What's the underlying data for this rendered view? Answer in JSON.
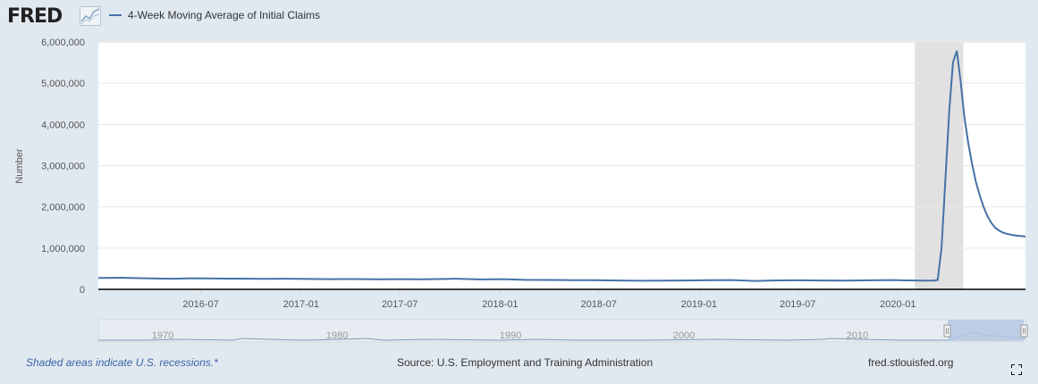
{
  "header": {
    "logo_text": "FRED",
    "logo_icon": "line-chart-icon"
  },
  "footer": {
    "recessions_note": "Shaded areas indicate U.S. recessions.*",
    "source": "Source: U.S. Employment and Training Administration",
    "site": "fred.stlouisfed.org",
    "fullscreen_icon": "expand-icon"
  },
  "colors": {
    "series": "#4572a7",
    "recession": "#e1e1e1",
    "background": "#e1e9f0",
    "navigator_mask": "#b5c8e2"
  },
  "navigator": {
    "tick_labels": [
      "1970",
      "1980",
      "1990",
      "2000",
      "2010"
    ]
  },
  "chart_data": {
    "type": "line",
    "title": "",
    "ylabel": "Number",
    "xlabel": "",
    "xlim": [
      "2015-12-26",
      "2020-08-22"
    ],
    "ylim": [
      0,
      6000000
    ],
    "yticks": [
      0,
      1000000,
      2000000,
      3000000,
      4000000,
      5000000,
      6000000
    ],
    "ytick_labels": [
      "0",
      "1,000,000",
      "2,000,000",
      "3,000,000",
      "4,000,000",
      "5,000,000",
      "6,000,000"
    ],
    "xticks": [
      "2016-07-01",
      "2017-01-01",
      "2017-07-01",
      "2018-01-01",
      "2018-07-01",
      "2019-01-01",
      "2019-07-01",
      "2020-01-01"
    ],
    "xtick_labels": [
      "2016-07",
      "2017-01",
      "2017-07",
      "2018-01",
      "2018-07",
      "2019-01",
      "2019-07",
      "2020-01"
    ],
    "grid": true,
    "legend_position": "top-left",
    "recessions": [
      [
        "2020-02-01",
        "2020-04-30"
      ]
    ],
    "series": [
      {
        "name": "4-Week Moving Average of Initial Claims",
        "x": [
          "2015-12-26",
          "2016-02-06",
          "2016-03-19",
          "2016-05-07",
          "2016-06-18",
          "2016-07-30",
          "2016-09-10",
          "2016-10-22",
          "2016-12-03",
          "2017-01-14",
          "2017-02-25",
          "2017-04-08",
          "2017-05-20",
          "2017-07-01",
          "2017-08-12",
          "2017-09-23",
          "2017-10-14",
          "2017-11-25",
          "2018-01-06",
          "2018-02-17",
          "2018-03-31",
          "2018-05-12",
          "2018-06-23",
          "2018-08-04",
          "2018-09-15",
          "2018-10-27",
          "2018-12-08",
          "2019-01-19",
          "2019-03-02",
          "2019-04-13",
          "2019-05-25",
          "2019-07-06",
          "2019-08-17",
          "2019-09-28",
          "2019-11-09",
          "2019-12-21",
          "2020-01-18",
          "2020-02-15",
          "2020-03-07",
          "2020-03-14",
          "2020-03-21",
          "2020-03-28",
          "2020-04-04",
          "2020-04-11",
          "2020-04-18",
          "2020-04-25",
          "2020-05-02",
          "2020-05-09",
          "2020-05-16",
          "2020-05-23",
          "2020-05-30",
          "2020-06-06",
          "2020-06-13",
          "2020-06-20",
          "2020-06-27",
          "2020-07-04",
          "2020-07-11",
          "2020-07-18",
          "2020-07-25",
          "2020-08-01",
          "2020-08-08",
          "2020-08-15",
          "2020-08-22"
        ],
        "values": [
          276000,
          281000,
          268000,
          258000,
          269000,
          262000,
          259000,
          255000,
          258000,
          251000,
          247000,
          250000,
          245000,
          248000,
          243000,
          252000,
          258000,
          241000,
          247000,
          230000,
          228000,
          223000,
          220000,
          214000,
          208000,
          213000,
          215000,
          222000,
          226000,
          204000,
          216000,
          218000,
          214000,
          213000,
          219000,
          225000,
          216000,
          210000,
          214000,
          225000,
          998000,
          2655000,
          4315000,
          5505000,
          5786000,
          5033000,
          4171000,
          3546000,
          3036000,
          2608000,
          2285000,
          2002000,
          1783000,
          1620000,
          1500000,
          1430000,
          1380000,
          1350000,
          1330000,
          1310000,
          1300000,
          1290000,
          1280000
        ]
      }
    ]
  }
}
